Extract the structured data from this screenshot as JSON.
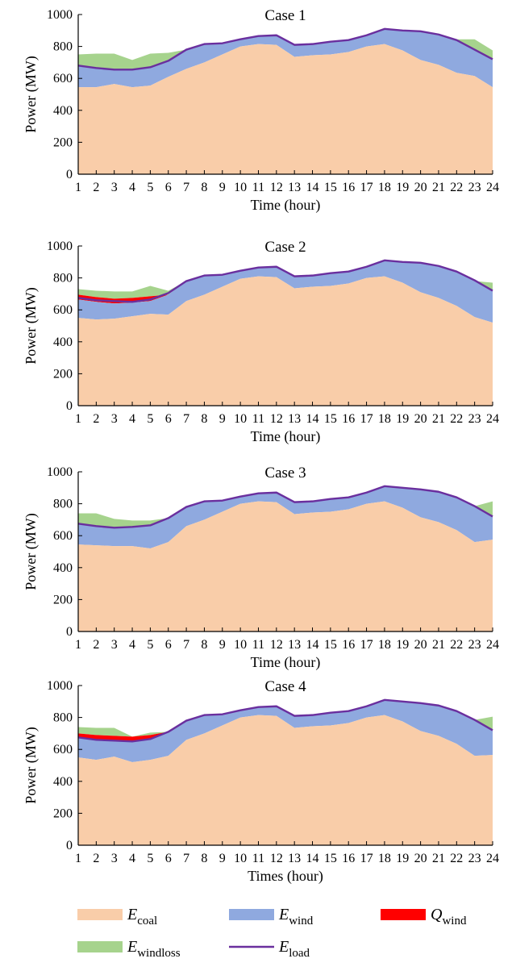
{
  "figure": {
    "legend": [
      {
        "key": "coal",
        "symbol": "E",
        "sub": "coal",
        "kind": "area",
        "color": "#f9cda9"
      },
      {
        "key": "wind",
        "symbol": "E",
        "sub": "wind",
        "kind": "area",
        "color": "#8fa9df"
      },
      {
        "key": "qwind",
        "symbol": "Q",
        "sub": "wind",
        "kind": "area",
        "color": "#ff0000"
      },
      {
        "key": "windloss",
        "symbol": "E",
        "sub": "windloss",
        "kind": "area",
        "color": "#a6d38d"
      },
      {
        "key": "load",
        "symbol": "E",
        "sub": "load",
        "kind": "line",
        "color": "#6a2f9e"
      }
    ]
  },
  "chart_data": [
    {
      "type": "area",
      "title": "Case 1",
      "xlabel": "Time (hour)",
      "ylabel": "Power (MW)",
      "x": [
        1,
        2,
        3,
        4,
        5,
        6,
        7,
        8,
        9,
        10,
        11,
        12,
        13,
        14,
        15,
        16,
        17,
        18,
        19,
        20,
        21,
        22,
        23,
        24
      ],
      "ylim": [
        0,
        1000
      ],
      "yticks": [
        0,
        200,
        400,
        600,
        800,
        1000
      ],
      "series": [
        {
          "name": "E_coal",
          "values": [
            545,
            545,
            565,
            545,
            555,
            610,
            660,
            700,
            750,
            800,
            815,
            810,
            735,
            745,
            750,
            765,
            800,
            815,
            775,
            715,
            685,
            635,
            615,
            545
          ]
        },
        {
          "name": "E_wind",
          "values": [
            135,
            120,
            90,
            110,
            115,
            100,
            120,
            115,
            70,
            45,
            50,
            60,
            75,
            70,
            80,
            75,
            70,
            95,
            125,
            180,
            190,
            205,
            165,
            175
          ]
        },
        {
          "name": "Q_wind",
          "values": [
            0,
            0,
            0,
            0,
            0,
            0,
            0,
            0,
            0,
            0,
            0,
            0,
            0,
            0,
            0,
            0,
            0,
            0,
            0,
            0,
            0,
            0,
            0,
            0
          ]
        },
        {
          "name": "E_windloss",
          "values": [
            70,
            90,
            100,
            60,
            85,
            50,
            0,
            0,
            0,
            0,
            0,
            0,
            0,
            0,
            0,
            0,
            0,
            0,
            0,
            0,
            0,
            5,
            65,
            55
          ]
        },
        {
          "name": "E_load",
          "values": [
            680,
            665,
            655,
            655,
            670,
            710,
            780,
            815,
            820,
            845,
            865,
            870,
            810,
            815,
            830,
            840,
            870,
            910,
            900,
            895,
            875,
            840,
            780,
            720
          ]
        }
      ]
    },
    {
      "type": "area",
      "title": "Case 2",
      "xlabel": "Time (hour)",
      "ylabel": "Power (MW)",
      "x": [
        1,
        2,
        3,
        4,
        5,
        6,
        7,
        8,
        9,
        10,
        11,
        12,
        13,
        14,
        15,
        16,
        17,
        18,
        19,
        20,
        21,
        22,
        23,
        24
      ],
      "ylim": [
        0,
        1000
      ],
      "yticks": [
        0,
        200,
        400,
        600,
        800,
        1000
      ],
      "series": [
        {
          "name": "E_coal",
          "values": [
            550,
            540,
            545,
            560,
            575,
            570,
            655,
            695,
            745,
            795,
            810,
            805,
            735,
            745,
            750,
            765,
            800,
            810,
            770,
            710,
            675,
            625,
            555,
            520
          ]
        },
        {
          "name": "E_wind",
          "values": [
            115,
            110,
            95,
            85,
            80,
            125,
            125,
            120,
            75,
            50,
            55,
            65,
            75,
            70,
            80,
            75,
            70,
            100,
            130,
            185,
            200,
            215,
            225,
            200
          ]
        },
        {
          "name": "Q_wind",
          "values": [
            30,
            30,
            30,
            30,
            30,
            0,
            0,
            0,
            0,
            0,
            0,
            0,
            0,
            0,
            0,
            0,
            0,
            0,
            0,
            0,
            0,
            0,
            0,
            0
          ]
        },
        {
          "name": "E_windloss",
          "values": [
            35,
            40,
            45,
            40,
            65,
            25,
            0,
            0,
            0,
            0,
            0,
            0,
            0,
            0,
            0,
            0,
            0,
            0,
            0,
            0,
            0,
            0,
            0,
            50
          ]
        },
        {
          "name": "E_load",
          "values": [
            675,
            660,
            655,
            650,
            665,
            705,
            780,
            815,
            820,
            845,
            865,
            870,
            810,
            815,
            830,
            840,
            870,
            910,
            900,
            895,
            875,
            840,
            785,
            720
          ]
        }
      ]
    },
    {
      "type": "area",
      "title": "Case 3",
      "xlabel": "Time (hour)",
      "ylabel": "Power (MW)",
      "x": [
        1,
        2,
        3,
        4,
        5,
        6,
        7,
        8,
        9,
        10,
        11,
        12,
        13,
        14,
        15,
        16,
        17,
        18,
        19,
        20,
        21,
        22,
        23,
        24
      ],
      "ylim": [
        0,
        1000
      ],
      "yticks": [
        0,
        200,
        400,
        600,
        800,
        1000
      ],
      "series": [
        {
          "name": "E_coal",
          "values": [
            545,
            540,
            535,
            535,
            520,
            560,
            660,
            700,
            750,
            800,
            815,
            810,
            735,
            745,
            750,
            765,
            800,
            815,
            775,
            715,
            685,
            635,
            560,
            575
          ]
        },
        {
          "name": "E_wind",
          "values": [
            130,
            120,
            115,
            120,
            145,
            150,
            120,
            115,
            70,
            45,
            50,
            60,
            75,
            70,
            80,
            75,
            70,
            95,
            125,
            180,
            190,
            205,
            225,
            145
          ]
        },
        {
          "name": "Q_wind",
          "values": [
            0,
            0,
            0,
            0,
            0,
            0,
            0,
            0,
            0,
            0,
            0,
            0,
            0,
            0,
            0,
            0,
            0,
            0,
            0,
            0,
            0,
            0,
            0,
            0
          ]
        },
        {
          "name": "E_windloss",
          "values": [
            65,
            80,
            55,
            40,
            30,
            0,
            0,
            0,
            0,
            0,
            0,
            0,
            0,
            0,
            0,
            0,
            0,
            0,
            0,
            0,
            0,
            0,
            0,
            95
          ]
        },
        {
          "name": "E_load",
          "values": [
            675,
            660,
            650,
            655,
            665,
            710,
            780,
            815,
            820,
            845,
            865,
            870,
            810,
            815,
            830,
            840,
            870,
            910,
            900,
            890,
            875,
            840,
            785,
            720
          ]
        }
      ]
    },
    {
      "type": "area",
      "title": "Case 4",
      "xlabel": "Times (hour)",
      "ylabel": "Power (MW)",
      "x": [
        1,
        2,
        3,
        4,
        5,
        6,
        7,
        8,
        9,
        10,
        11,
        12,
        13,
        14,
        15,
        16,
        17,
        18,
        19,
        20,
        21,
        22,
        23,
        24
      ],
      "ylim": [
        0,
        1000
      ],
      "yticks": [
        0,
        200,
        400,
        600,
        800,
        1000
      ],
      "series": [
        {
          "name": "E_coal",
          "values": [
            550,
            535,
            555,
            520,
            535,
            560,
            660,
            700,
            750,
            800,
            815,
            810,
            735,
            745,
            750,
            765,
            800,
            815,
            775,
            715,
            685,
            635,
            560,
            565
          ]
        },
        {
          "name": "E_wind",
          "values": [
            120,
            125,
            100,
            130,
            125,
            150,
            120,
            115,
            70,
            45,
            50,
            60,
            75,
            70,
            80,
            75,
            70,
            95,
            125,
            180,
            190,
            205,
            225,
            155
          ]
        },
        {
          "name": "Q_wind",
          "values": [
            30,
            30,
            30,
            30,
            30,
            0,
            0,
            0,
            0,
            0,
            0,
            0,
            0,
            0,
            0,
            0,
            0,
            0,
            0,
            0,
            0,
            0,
            0,
            0
          ]
        },
        {
          "name": "E_windloss",
          "values": [
            40,
            45,
            50,
            0,
            15,
            0,
            0,
            0,
            0,
            0,
            0,
            0,
            0,
            0,
            0,
            0,
            0,
            0,
            0,
            0,
            0,
            0,
            0,
            85
          ]
        },
        {
          "name": "E_load",
          "values": [
            675,
            660,
            655,
            650,
            665,
            710,
            780,
            815,
            820,
            845,
            865,
            870,
            810,
            815,
            830,
            840,
            870,
            910,
            900,
            890,
            875,
            840,
            785,
            720
          ]
        }
      ]
    }
  ]
}
